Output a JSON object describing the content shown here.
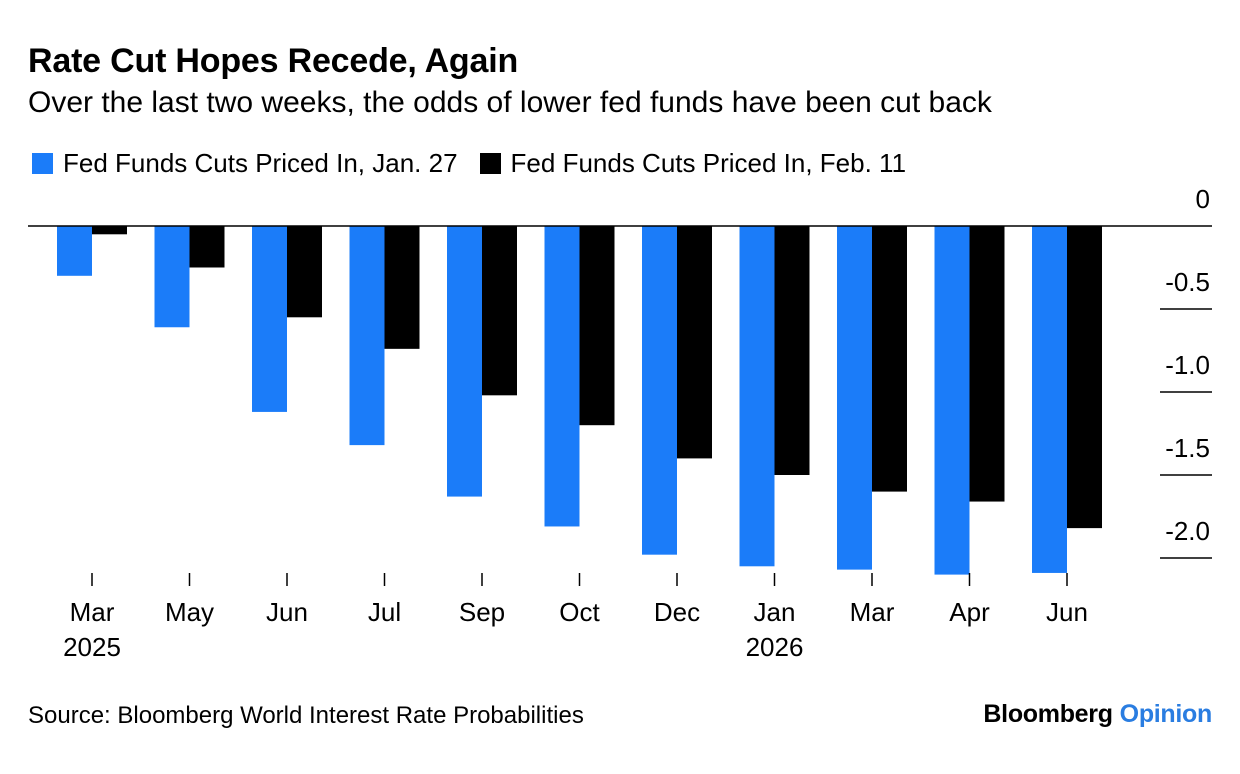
{
  "title": "Rate Cut Hopes Recede, Again",
  "subtitle": "Over the last two weeks, the odds of lower fed funds have been cut back",
  "source": "Source: Bloomberg World Interest Rate Probabilities",
  "brand": {
    "name": "Bloomberg",
    "section": "Opinion"
  },
  "colors": {
    "series_a": "#1b7cf9",
    "series_b": "#000000",
    "brand_accent": "#2a7de1"
  },
  "chart_data": {
    "type": "bar",
    "categories": [
      "Mar",
      "May",
      "Jun",
      "Jul",
      "Sep",
      "Oct",
      "Dec",
      "Jan",
      "Mar",
      "Apr",
      "Jun"
    ],
    "category_years": [
      "2025",
      "",
      "",
      "",
      "",
      "",
      "",
      "2026",
      "",
      "",
      ""
    ],
    "series": [
      {
        "name": "Fed Funds Cuts Priced In, Jan. 27",
        "values": [
          -0.3,
          -0.61,
          -1.12,
          -1.32,
          -1.63,
          -1.81,
          -1.98,
          -2.05,
          -2.07,
          -2.1,
          -2.09
        ]
      },
      {
        "name": "Fed Funds Cuts Priced In, Feb. 11",
        "values": [
          -0.05,
          -0.25,
          -0.55,
          -0.74,
          -1.02,
          -1.2,
          -1.4,
          -1.5,
          -1.6,
          -1.66,
          -1.82
        ]
      }
    ],
    "ylim": [
      -2.1,
      0
    ],
    "yticks": [
      0,
      -0.5,
      -1.0,
      -1.5,
      -2.0
    ],
    "ytick_labels": [
      "0",
      "-0.5",
      "-1.0",
      "-1.5",
      "-2.0"
    ],
    "xlabel": "",
    "ylabel": "",
    "y_axis_position": "right",
    "legend_position": "top-left",
    "grid": false
  }
}
